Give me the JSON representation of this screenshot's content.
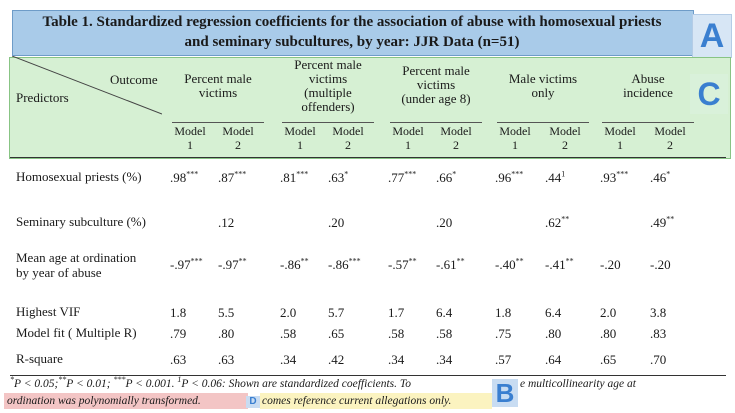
{
  "title": {
    "line1": "Table 1. Standardized regression coefficients for the association of abuse with homosexual priests",
    "line2": "and seminary subcultures, by year: JJR Data (n=51)"
  },
  "markers": {
    "a": "A",
    "b": "B",
    "c": "C",
    "d": "D"
  },
  "header": {
    "outcome_label": "Outcome",
    "predictors_label": "Predictors",
    "groups": [
      [
        "Percent male",
        "victims"
      ],
      [
        "Percent male",
        "victims",
        "(multiple",
        "offenders)"
      ],
      [
        "Percent male",
        "victims",
        "(under age 8)"
      ],
      [
        "Male victims",
        "only"
      ],
      [
        "Abuse",
        "incidence"
      ]
    ],
    "model_labels": [
      "Model",
      "Model"
    ],
    "model_numbers": [
      "1",
      "2"
    ]
  },
  "rows": [
    {
      "label": [
        "Homosexual priests (%)"
      ],
      "cells": [
        {
          "v": ".98",
          "s": "***"
        },
        {
          "v": ".87",
          "s": "***"
        },
        {
          "v": ".81",
          "s": "***"
        },
        {
          "v": ".63",
          "s": "*"
        },
        {
          "v": ".77",
          "s": "***"
        },
        {
          "v": ".66",
          "s": "*"
        },
        {
          "v": ".96",
          "s": "***"
        },
        {
          "v": ".44",
          "s": "1"
        },
        {
          "v": ".93",
          "s": "***"
        },
        {
          "v": ".46",
          "s": "*"
        }
      ]
    },
    {
      "label": [
        "Seminary subculture (%)"
      ],
      "cells": [
        {
          "v": "",
          "s": ""
        },
        {
          "v": ".12",
          "s": ""
        },
        {
          "v": "",
          "s": ""
        },
        {
          "v": ".20",
          "s": ""
        },
        {
          "v": "",
          "s": ""
        },
        {
          "v": ".20",
          "s": ""
        },
        {
          "v": "",
          "s": ""
        },
        {
          "v": ".62",
          "s": "**"
        },
        {
          "v": "",
          "s": ""
        },
        {
          "v": ".49",
          "s": "**"
        }
      ]
    },
    {
      "label": [
        "Mean age at ordination",
        "by year of abuse"
      ],
      "cells": [
        {
          "v": "-.97",
          "s": "***"
        },
        {
          "v": "-.97",
          "s": "**"
        },
        {
          "v": "-.86",
          "s": "**"
        },
        {
          "v": "-.86",
          "s": "***"
        },
        {
          "v": "-.57",
          "s": "**"
        },
        {
          "v": "-.61",
          "s": "**"
        },
        {
          "v": "-.40",
          "s": "**"
        },
        {
          "v": "-.41",
          "s": "**"
        },
        {
          "v": "-.20",
          "s": ""
        },
        {
          "v": "-.20",
          "s": ""
        }
      ]
    },
    {
      "label": [
        "Highest VIF"
      ],
      "cells": [
        {
          "v": "1.8",
          "s": ""
        },
        {
          "v": "5.5",
          "s": ""
        },
        {
          "v": "2.0",
          "s": ""
        },
        {
          "v": "5.7",
          "s": ""
        },
        {
          "v": "1.7",
          "s": ""
        },
        {
          "v": "6.4",
          "s": ""
        },
        {
          "v": "1.8",
          "s": ""
        },
        {
          "v": "6.4",
          "s": ""
        },
        {
          "v": "2.0",
          "s": ""
        },
        {
          "v": "3.8",
          "s": ""
        }
      ]
    },
    {
      "label": [
        "Model fit ( Multiple R)"
      ],
      "cells": [
        {
          "v": ".79",
          "s": ""
        },
        {
          "v": ".80",
          "s": ""
        },
        {
          "v": ".58",
          "s": ""
        },
        {
          "v": ".65",
          "s": ""
        },
        {
          "v": ".58",
          "s": ""
        },
        {
          "v": ".58",
          "s": ""
        },
        {
          "v": ".75",
          "s": ""
        },
        {
          "v": ".80",
          "s": ""
        },
        {
          "v": ".80",
          "s": ""
        },
        {
          "v": ".83",
          "s": ""
        }
      ]
    },
    {
      "label": [
        "R-square"
      ],
      "cells": [
        {
          "v": ".63",
          "s": ""
        },
        {
          "v": ".63",
          "s": ""
        },
        {
          "v": ".34",
          "s": ""
        },
        {
          "v": ".42",
          "s": ""
        },
        {
          "v": ".34",
          "s": ""
        },
        {
          "v": ".34",
          "s": ""
        },
        {
          "v": ".57",
          "s": ""
        },
        {
          "v": ".64",
          "s": ""
        },
        {
          "v": ".65",
          "s": ""
        },
        {
          "v": ".70",
          "s": ""
        }
      ]
    }
  ],
  "footnote": {
    "line1_a": "P < 0.05;",
    "line1_b": "P < 0.01; ",
    "line1_c": "P < 0.001. ",
    "line1_d": "P < 0.06:  Shown are standardized coefficients.  To",
    "line1_e": "e multicollinearity age at",
    "line2_a": "ordination was polynomially transformed.",
    "line2_b": "comes reference current allegations only.",
    "sup1": "*",
    "sup2": "**",
    "sup3": "***",
    "sup4": "1"
  }
}
